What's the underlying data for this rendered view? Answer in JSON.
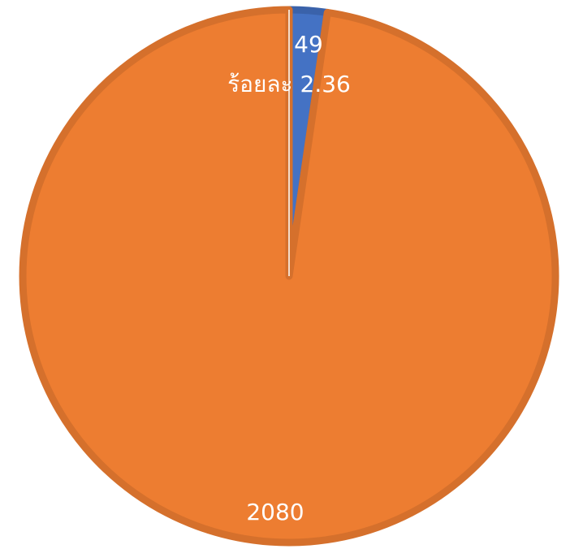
{
  "chart_data": {
    "type": "pie",
    "title": "",
    "categories": [
      "",
      ""
    ],
    "values": [
      49,
      2080
    ],
    "colors": [
      "#4472C4",
      "#ED7D31"
    ],
    "edge_colors": [
      "#3A62AA",
      "#D5702C"
    ],
    "data_labels": [
      {
        "value": "49",
        "percent": "ร้อยละ 2.36"
      },
      {
        "value": "2080"
      }
    ],
    "start_angle": "top",
    "direction": "clockwise",
    "legend": "none"
  }
}
